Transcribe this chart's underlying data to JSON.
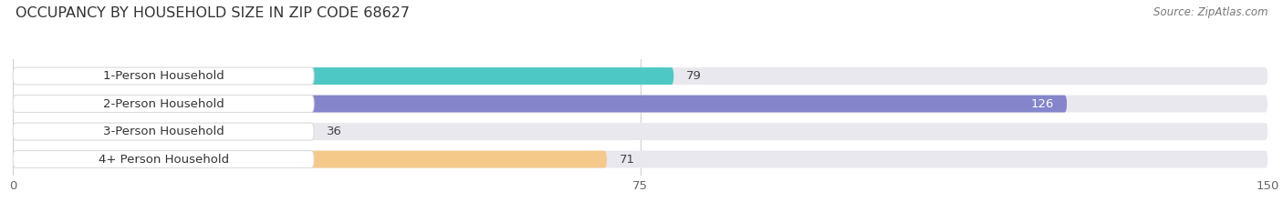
{
  "title": "OCCUPANCY BY HOUSEHOLD SIZE IN ZIP CODE 68627",
  "source": "Source: ZipAtlas.com",
  "categories": [
    "1-Person Household",
    "2-Person Household",
    "3-Person Household",
    "4+ Person Household"
  ],
  "values": [
    79,
    126,
    36,
    71
  ],
  "bar_colors": [
    "#4EC8C4",
    "#8585CC",
    "#F4A0B8",
    "#F5C98A"
  ],
  "xlim": [
    0,
    150
  ],
  "xticks": [
    0,
    75,
    150
  ],
  "background_color": "#ffffff",
  "bar_bg_color": "#e8e8ee",
  "label_bg_color": "#ffffff",
  "title_fontsize": 11.5,
  "source_fontsize": 8.5,
  "tick_fontsize": 9.5,
  "bar_label_fontsize": 9.5,
  "category_fontsize": 9.5,
  "bar_height": 0.62
}
